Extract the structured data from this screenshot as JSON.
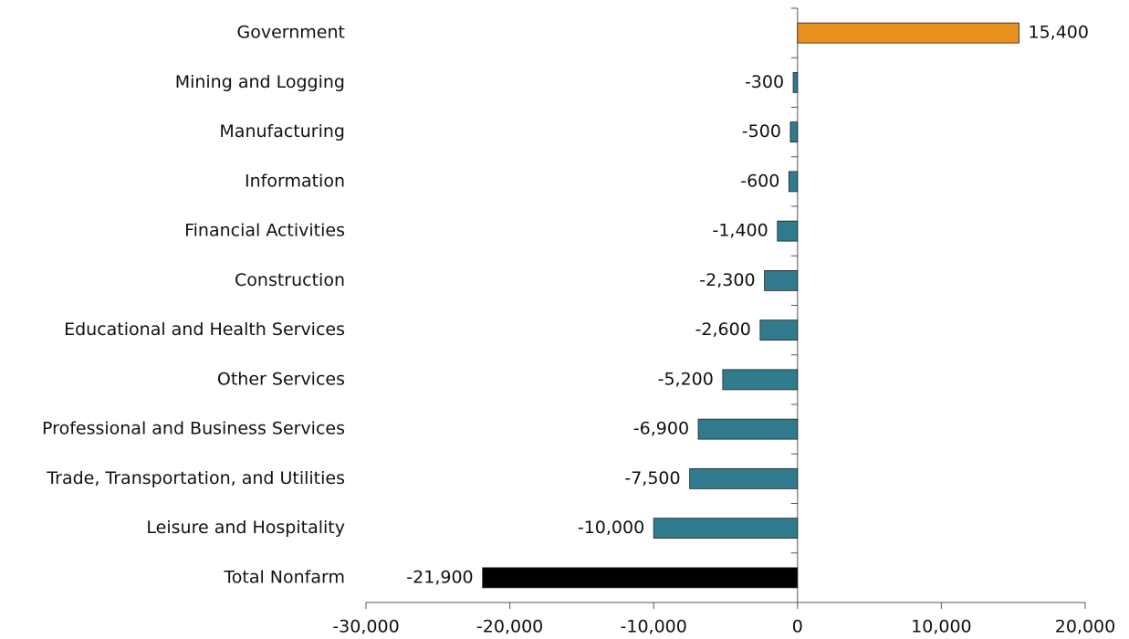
{
  "chart_data": {
    "type": "hbar",
    "categories": [
      "Government",
      "Mining and Logging",
      "Manufacturing",
      "Information",
      "Financial Activities",
      "Construction",
      "Educational and Health Services",
      "Other Services",
      "Professional and Business Services",
      "Trade, Transportation, and Utilities",
      "Leisure and Hospitality",
      "Total Nonfarm"
    ],
    "values": [
      15400,
      -300,
      -500,
      -600,
      -1400,
      -2300,
      -2600,
      -5200,
      -6900,
      -7500,
      -10000,
      -21900
    ],
    "value_labels": [
      "15,400",
      "-300",
      "-500",
      "-600",
      "-1,400",
      "-2,300",
      "-2,600",
      "-5,200",
      "-6,900",
      "-7,500",
      "-10,000",
      "-21,900"
    ],
    "colors": [
      "#e8901e",
      "#317b8f",
      "#317b8f",
      "#317b8f",
      "#317b8f",
      "#317b8f",
      "#317b8f",
      "#317b8f",
      "#317b8f",
      "#317b8f",
      "#317b8f",
      "#000000"
    ],
    "xlim": [
      -30000,
      20000
    ],
    "xticks": [
      {
        "value": -30000,
        "label": "-30,000"
      },
      {
        "value": -20000,
        "label": "-20,000"
      },
      {
        "value": -10000,
        "label": "-10,000"
      },
      0,
      {
        "value": 10000,
        "label": "10,000"
      },
      {
        "value": 20000,
        "label": "20,000"
      }
    ]
  }
}
